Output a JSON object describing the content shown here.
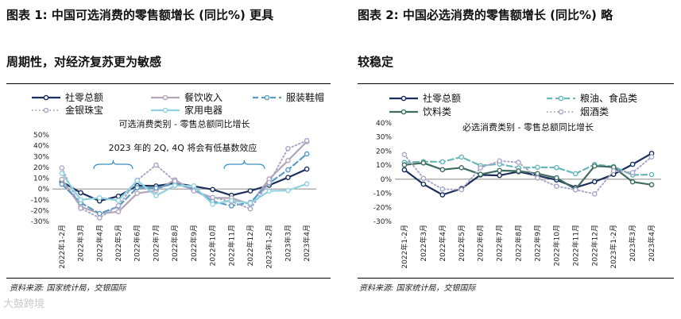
{
  "left_panel": {
    "title_line1": "图表 1:  中国可选消费的零售额增长 (同比%)  更具",
    "title_line2": "周期性，对经济复苏更为敏感",
    "source": "资料来源:  国家统计局，交银国际"
  },
  "right_panel": {
    "title_line1": "图表 2:  中国必选消费的零售额增长 (同比%)  略",
    "title_line2": "较稳定",
    "source": "资料来源:  国家统计局，交银国际"
  },
  "watermark": "大鼓跨境",
  "chart_data": [
    {
      "type": "line",
      "title": "可选消费类别 - 零售总额同比增长",
      "annotation": "2023 年的 2Q, 4Q 将会有低基数效应",
      "categories": [
        "2022年1-2月",
        "2022年3月",
        "2022年4月",
        "2022年5月",
        "2022年6月",
        "2022年7月",
        "2022年8月",
        "2022年9月",
        "2022年10月",
        "2022年11月",
        "2022年12月",
        "2023年1-2月",
        "2023年3月",
        "2023年4月"
      ],
      "ylim": [
        -30,
        50
      ],
      "yticks": [
        -30,
        -20,
        -10,
        0,
        10,
        20,
        30,
        40,
        50
      ],
      "ytick_labels": [
        "-30%",
        "-20%",
        "-10%",
        "0%",
        "10%",
        "20%",
        "30%",
        "40%",
        "50%"
      ],
      "series": [
        {
          "name": "社零总额",
          "color": "#1b2f5c",
          "style": "solid",
          "width": 2.2,
          "values": [
            6.7,
            -3.5,
            -11.1,
            -6.7,
            3.1,
            2.7,
            5.4,
            2.5,
            -0.5,
            -5.9,
            -1.8,
            3.5,
            10.6,
            18.4
          ]
        },
        {
          "name": "餐饮收入",
          "color": "#b3a4b7",
          "style": "solid",
          "width": 2.2,
          "values": [
            8.9,
            -16.4,
            -22.7,
            -21.1,
            -4.0,
            -1.5,
            8.4,
            -1.7,
            -8.1,
            -8.4,
            -14.1,
            9.2,
            26.3,
            43.8
          ]
        },
        {
          "name": "服装鞋帽",
          "color": "#5b9bc3",
          "style": "dash",
          "width": 2.2,
          "values": [
            4.4,
            -12.7,
            -22.8,
            -16.2,
            1.2,
            0.8,
            5.0,
            -0.2,
            -11.5,
            -15.6,
            -12.5,
            5.4,
            17.7,
            32.4
          ]
        },
        {
          "name": "金银珠宝",
          "color": "#a7a7c9",
          "style": "dot",
          "width": 2.0,
          "values": [
            19.5,
            -17.9,
            -26.7,
            -15.5,
            8.1,
            22.1,
            7.2,
            -1.9,
            -7.9,
            -11.6,
            -18.4,
            5.9,
            37.4,
            44.7
          ]
        },
        {
          "name": "家用电器",
          "color": "#8fd1e0",
          "style": "solid",
          "width": 2.2,
          "values": [
            14.4,
            -10.1,
            -8.2,
            -10.6,
            7.8,
            -6.2,
            3.2,
            2.8,
            -14.1,
            -10.8,
            -13.1,
            -1.9,
            -1.4,
            4.7
          ]
        }
      ]
    },
    {
      "type": "line",
      "title": "必选消费类别 - 零售总额同比增长",
      "categories": [
        "2022年1-2月",
        "2022年3月",
        "2022年4月",
        "2022年5月",
        "2022年6月",
        "2022年7月",
        "2022年8月",
        "2022年9月",
        "2022年10月",
        "2022年11月",
        "2022年12月",
        "2023年1-2月",
        "2023年3月",
        "2023年4月"
      ],
      "ylim": [
        -30,
        40
      ],
      "yticks": [
        -30,
        -20,
        -10,
        0,
        10,
        20,
        30,
        40
      ],
      "ytick_labels": [
        "-30%",
        "-20%",
        "-10%",
        "0%",
        "10%",
        "20%",
        "30%",
        "40%"
      ],
      "series": [
        {
          "name": "社零总额",
          "color": "#1b2f5c",
          "style": "solid",
          "width": 2.2,
          "values": [
            6.7,
            -3.5,
            -11.1,
            -6.7,
            3.1,
            2.7,
            5.4,
            2.5,
            -0.5,
            -5.9,
            -1.8,
            3.5,
            10.6,
            18.4
          ]
        },
        {
          "name": "粮油、食品类",
          "color": "#6ab6b8",
          "style": "dash",
          "width": 2.2,
          "values": [
            12.0,
            12.5,
            12.4,
            15.8,
            9.7,
            10.8,
            8.1,
            8.5,
            8.3,
            3.9,
            10.5,
            9.0,
            3.0,
            3.3
          ]
        },
        {
          "name": "饮料类",
          "color": "#3f6b60",
          "style": "solid",
          "width": 2.2,
          "values": [
            10.2,
            11.6,
            6.8,
            8.2,
            3.5,
            6.2,
            5.8,
            4.0,
            1.0,
            -7.1,
            9.4,
            8.6,
            -1.9,
            -3.9
          ]
        },
        {
          "name": "烟酒类",
          "color": "#a7a7c9",
          "style": "dot",
          "width": 2.0,
          "values": [
            17.5,
            0.7,
            -7.0,
            -7.4,
            8.1,
            13.0,
            12.0,
            0.9,
            -5.0,
            -7.5,
            -10.5,
            6.0,
            4.7,
            15.9
          ]
        }
      ]
    }
  ]
}
